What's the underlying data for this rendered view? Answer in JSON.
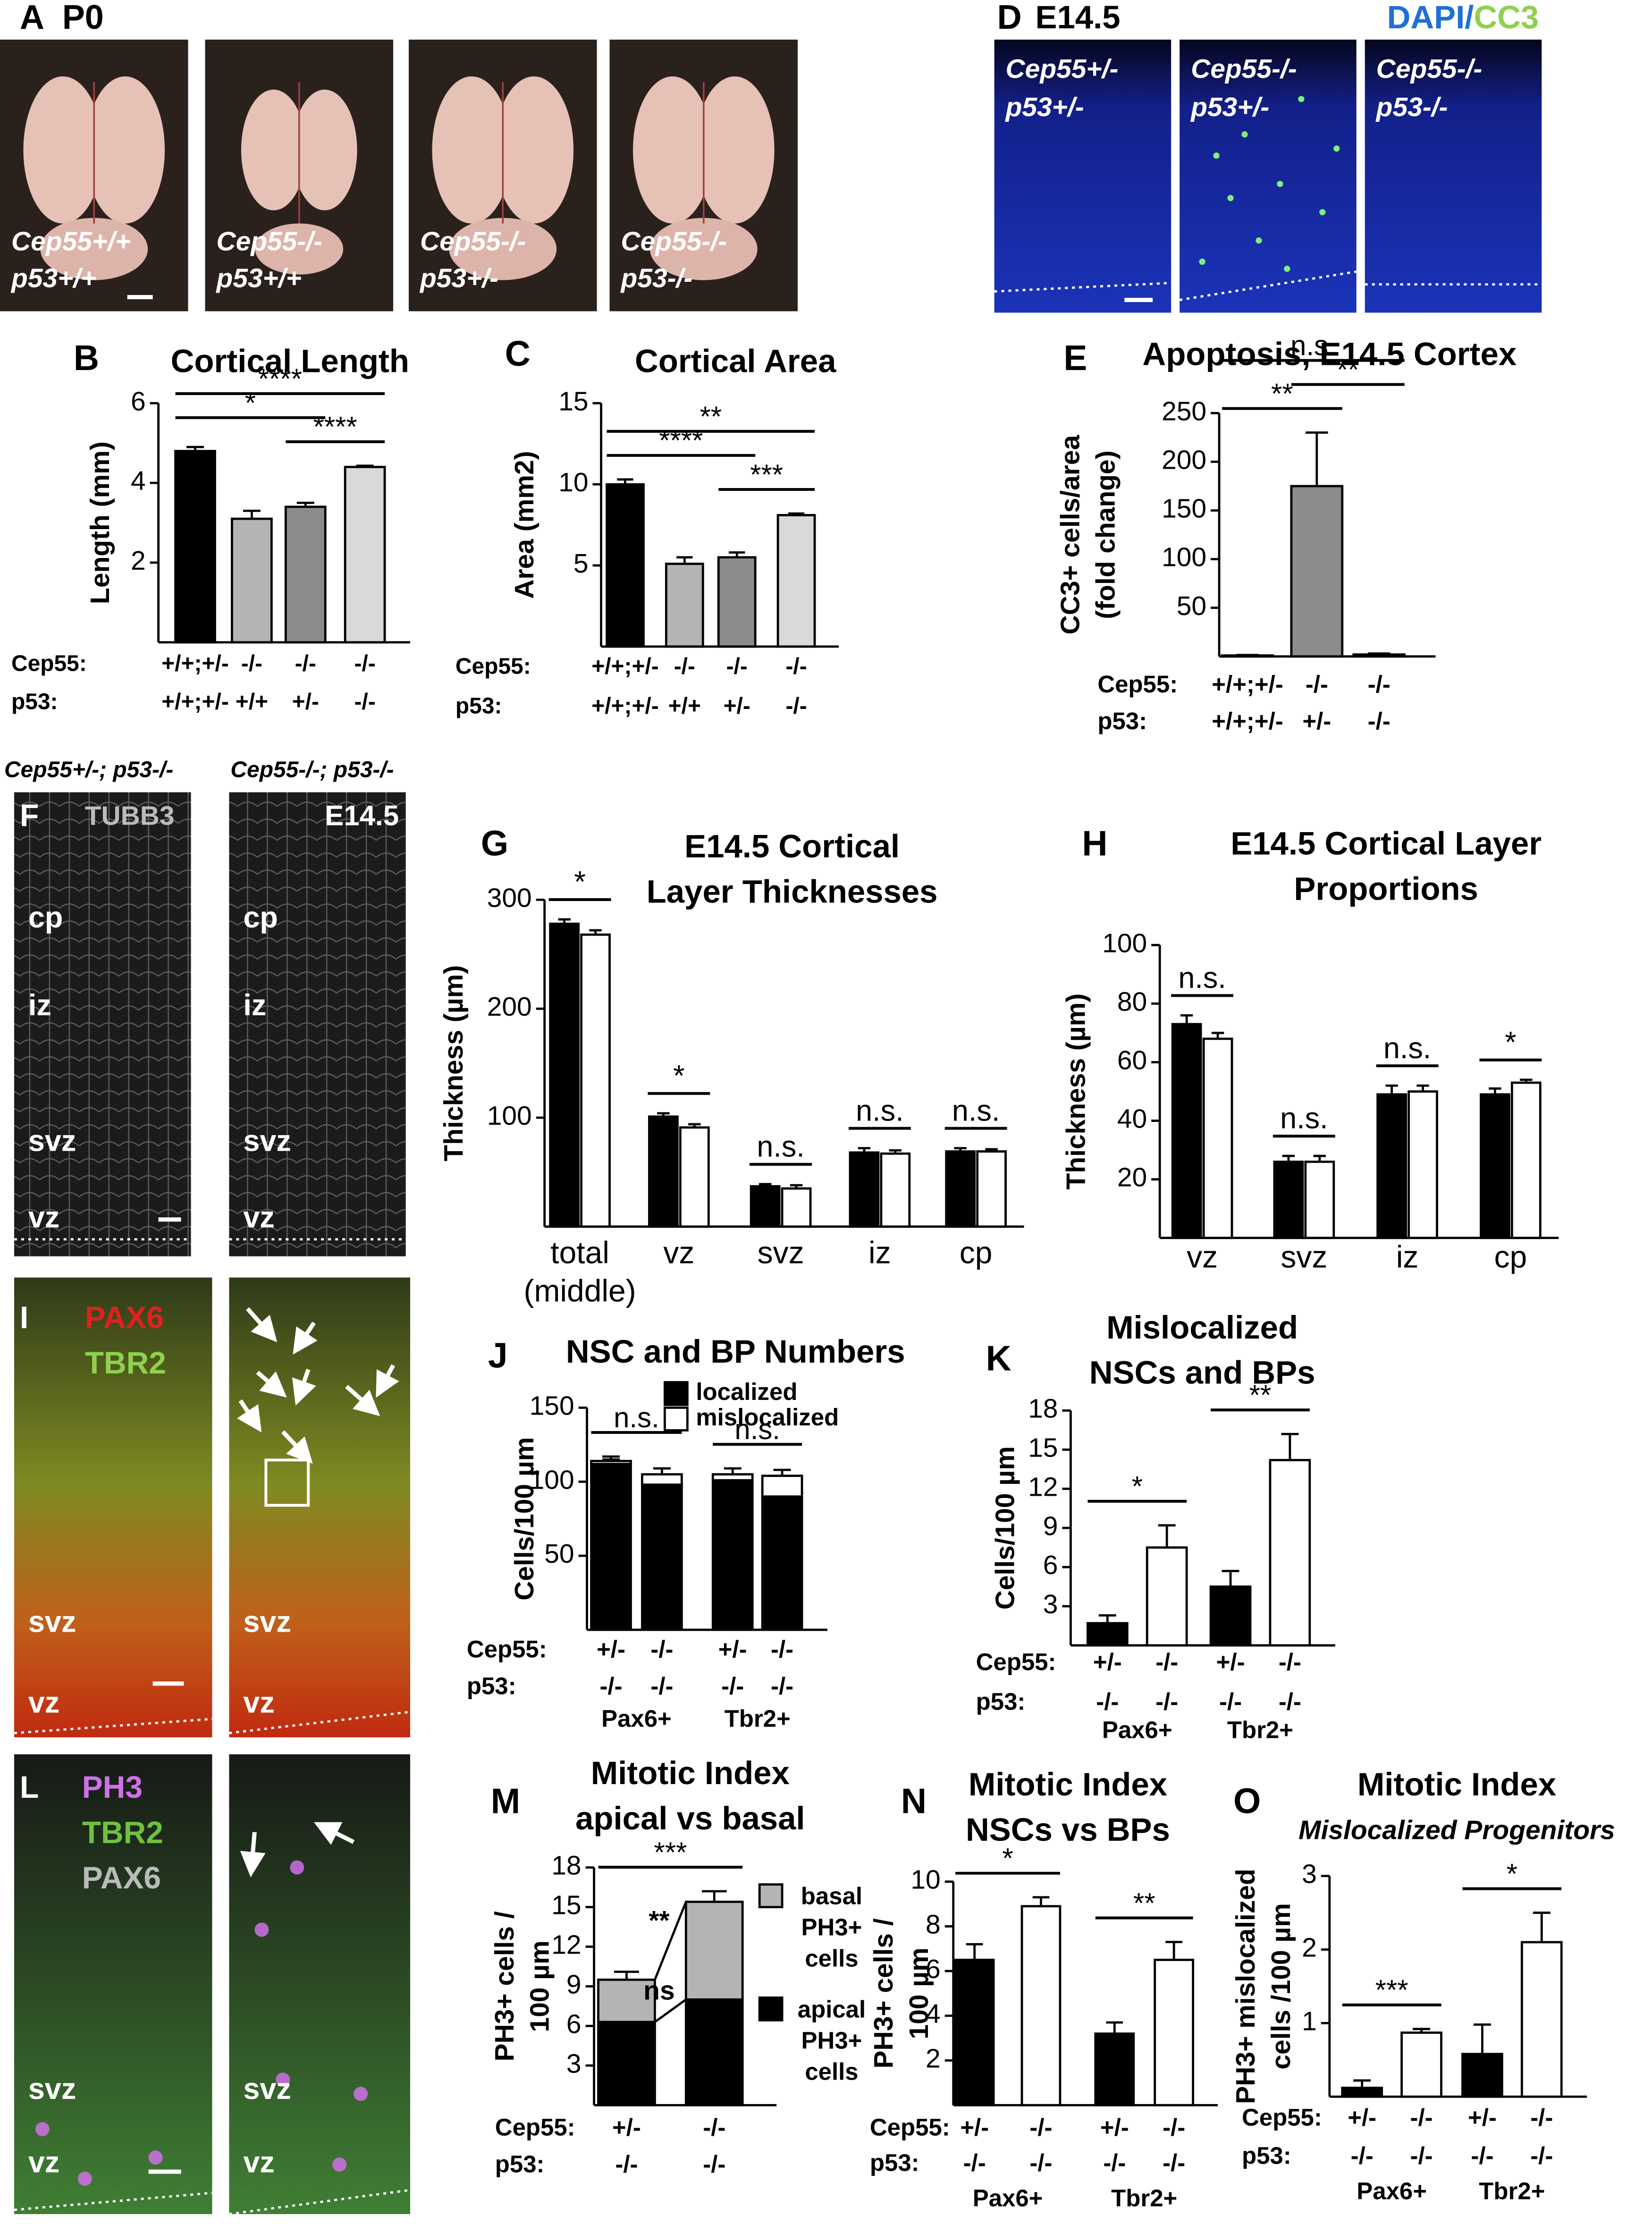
{
  "image_panels": {
    "A": {
      "label": "A",
      "title": "P0",
      "images": [
        [
          "Cep55+/+",
          "p53+/+"
        ],
        [
          "Cep55-/-",
          "p53+/+"
        ],
        [
          "Cep55-/-",
          "p53+/-"
        ],
        [
          "Cep55-/-",
          "p53-/-"
        ]
      ]
    },
    "D": {
      "label": "D",
      "title": "E14.5",
      "stain": [
        {
          "text": "DAPI/",
          "color": "#1f6fd8"
        },
        {
          "text": "CC3",
          "color": "#8fd14f"
        }
      ],
      "images": [
        [
          "Cep55+/-",
          "p53+/-"
        ],
        [
          "Cep55-/-",
          "p53+/-"
        ],
        [
          "Cep55-/-",
          "p53-/-"
        ]
      ]
    },
    "F": {
      "label": "F",
      "genotypes": [
        "Cep55+/-; p53-/-",
        "Cep55-/-; p53-/-"
      ],
      "stain": [
        {
          "text": "TUBB3",
          "color": "#bbbbbb"
        }
      ],
      "stage": "E14.5",
      "layers": [
        [
          "cp",
          "iz",
          "svz",
          "vz"
        ],
        [
          "cp",
          "iz",
          "svz",
          "vz"
        ]
      ]
    },
    "I": {
      "label": "I",
      "stain": [
        {
          "text": "PAX6",
          "color": "#e02020"
        },
        {
          "text": "TBR2",
          "color": "#8fd14f"
        }
      ],
      "layers": [
        [
          "svz",
          "vz"
        ],
        [
          "svz",
          "vz"
        ]
      ]
    },
    "L": {
      "label": "L",
      "stain": [
        {
          "text": "PH3",
          "color": "#d070e8"
        },
        {
          "text": "TBR2",
          "color": "#70c040"
        },
        {
          "text": "PAX6",
          "color": "#bbbbbb"
        }
      ],
      "layers": [
        [
          "svz",
          "vz"
        ],
        [
          "svz",
          "vz"
        ]
      ]
    }
  },
  "chart_data": [
    {
      "panel": "B",
      "type": "bar",
      "title": [
        "Cortical Length"
      ],
      "ylabel": [
        "Length (mm)"
      ],
      "ylim": [
        0,
        6
      ],
      "yticks": [
        2,
        4,
        6
      ],
      "values": [
        4.8,
        3.1,
        3.4,
        4.4
      ],
      "errors": [
        0.1,
        0.2,
        0.1,
        0.03
      ],
      "colors": [
        "#000000",
        "#b4b4b4",
        "#8c8c8c",
        "#d9d9d9"
      ],
      "category_rows": [
        {
          "label": "Cep55:",
          "labels": [
            "+/+;+/-",
            "-/-",
            "-/-",
            "-/-"
          ]
        },
        {
          "label": "p53:",
          "labels": [
            "+/+;+/-",
            "+/+",
            "+/-",
            "-/-"
          ]
        }
      ],
      "significance": [
        {
          "text": "****",
          "from": 0,
          "to": 3
        },
        {
          "text": "*",
          "from": 0,
          "to": 2
        },
        {
          "text": "****",
          "from": 2,
          "to": 3
        }
      ]
    },
    {
      "panel": "C",
      "type": "bar",
      "title": [
        "Cortical Area"
      ],
      "ylabel": [
        "Area (mm2)"
      ],
      "ylim": [
        0,
        15
      ],
      "yticks": [
        5,
        10,
        15
      ],
      "values": [
        10.0,
        5.1,
        5.5,
        8.1
      ],
      "errors": [
        0.3,
        0.4,
        0.3,
        0.1
      ],
      "colors": [
        "#000000",
        "#b4b4b4",
        "#8c8c8c",
        "#d9d9d9"
      ],
      "category_rows": [
        {
          "label": "Cep55:",
          "labels": [
            "+/+;+/-",
            "-/-",
            "-/-",
            "-/-"
          ]
        },
        {
          "label": "p53:",
          "labels": [
            "+/+;+/-",
            "+/+",
            "+/-",
            "-/-"
          ]
        }
      ],
      "significance": [
        {
          "text": "**",
          "from": 0,
          "to": 3
        },
        {
          "text": "****",
          "from": 0,
          "to": 2
        },
        {
          "text": "***",
          "from": 2,
          "to": 3
        }
      ]
    },
    {
      "panel": "E",
      "type": "bar",
      "title": [
        "Apoptosis, E14.5 Cortex"
      ],
      "ylabel": [
        "CC3+ cells/area",
        "(fold change)"
      ],
      "ylim": [
        0,
        250
      ],
      "yticks": [
        50,
        100,
        150,
        200,
        250
      ],
      "values": [
        1,
        175,
        2
      ],
      "errors": [
        0.5,
        55,
        1
      ],
      "colors": [
        "#000000",
        "#8c8c8c",
        "#8c8c8c"
      ],
      "category_rows": [
        {
          "label": "Cep55:",
          "labels": [
            "+/+;+/-",
            "-/-",
            "-/-"
          ]
        },
        {
          "label": "p53:",
          "labels": [
            "+/+;+/-",
            "+/-",
            "-/-"
          ]
        }
      ],
      "significance": [
        {
          "text": "n.s.",
          "from": 0,
          "to": 2
        },
        {
          "text": "**",
          "from": 0,
          "to": 1
        },
        {
          "text": "**",
          "from": 1,
          "to": 2
        }
      ]
    },
    {
      "panel": "G",
      "type": "bar",
      "title": [
        "E14.5 Cortical",
        "Layer Thicknesses"
      ],
      "ylabel": [
        "Thickness (µm)"
      ],
      "ylim": [
        0,
        300
      ],
      "yticks": [
        100,
        200,
        300
      ],
      "categories": [
        "total (middle)",
        "vz",
        "svz",
        "iz",
        "cp"
      ],
      "series": [
        {
          "color": "#000000",
          "values": [
            278,
            101,
            37,
            68,
            69
          ],
          "errors": [
            4,
            3,
            2,
            4,
            3
          ]
        },
        {
          "color": "#ffffff",
          "values": [
            268,
            91,
            35,
            67,
            69
          ],
          "errors": [
            4,
            3,
            3,
            3,
            2
          ]
        }
      ],
      "significance": [
        {
          "text": "*",
          "category": 0
        },
        {
          "text": "*",
          "category": 1
        },
        {
          "text": "n.s.",
          "category": 2
        },
        {
          "text": "n.s.",
          "category": 3
        },
        {
          "text": "n.s.",
          "category": 4
        }
      ]
    },
    {
      "panel": "H",
      "type": "bar",
      "title": [
        "E14.5 Cortical Layer",
        "Proportions"
      ],
      "ylabel": [
        "Thickness (µm)"
      ],
      "ylim": [
        0,
        100
      ],
      "yticks": [
        20,
        40,
        60,
        80,
        100
      ],
      "categories": [
        "vz",
        "svz",
        "iz",
        "cp"
      ],
      "series": [
        {
          "color": "#000000",
          "values": [
            73,
            26,
            49,
            49
          ],
          "errors": [
            3,
            2,
            3,
            2
          ]
        },
        {
          "color": "#ffffff",
          "values": [
            68,
            26,
            50,
            53
          ],
          "errors": [
            2,
            2,
            2,
            1
          ]
        }
      ],
      "significance": [
        {
          "text": "n.s.",
          "category": 0
        },
        {
          "text": "n.s.",
          "category": 1
        },
        {
          "text": "n.s.",
          "category": 2
        },
        {
          "text": "*",
          "category": 3
        }
      ]
    },
    {
      "panel": "J",
      "type": "stacked_bar",
      "title": [
        "NSC and BP Numbers"
      ],
      "ylabel": [
        "Cells/100 µm"
      ],
      "ylim": [
        0,
        150
      ],
      "yticks": [
        50,
        100,
        150
      ],
      "series": [
        {
          "name": "localized",
          "color": "#000000",
          "values": [
            112,
            98,
            101,
            90
          ],
          "errors": [
            3,
            4,
            3,
            6
          ]
        },
        {
          "name": "mislocalized",
          "color": "#ffffff",
          "values": [
            2,
            7,
            4,
            14
          ],
          "errors": [
            3,
            4,
            4,
            4
          ]
        }
      ],
      "category_rows": [
        {
          "label": "Cep55:",
          "labels": [
            "+/-",
            "-/-",
            "+/-",
            "-/-"
          ]
        },
        {
          "label": "p53:",
          "labels": [
            "-/-",
            "-/-",
            "-/-",
            "-/-"
          ]
        }
      ],
      "groups": [
        {
          "label": "Pax6+",
          "from": 0,
          "to": 1
        },
        {
          "label": "Tbr2+",
          "from": 2,
          "to": 3
        }
      ],
      "significance": [
        {
          "text": "n.s.",
          "from": 0,
          "to": 1
        },
        {
          "text": "n.s.",
          "from": 2,
          "to": 3
        }
      ]
    },
    {
      "panel": "K",
      "type": "bar",
      "title": [
        "Mislocalized",
        "NSCs and BPs"
      ],
      "ylabel": [
        "Cells/100 µm"
      ],
      "ylim": [
        0,
        18
      ],
      "yticks": [
        3,
        6,
        9,
        12,
        15,
        18
      ],
      "values": [
        1.7,
        7.5,
        4.5,
        14.2
      ],
      "errors": [
        0.6,
        1.7,
        1.2,
        2.0
      ],
      "colors": [
        "#000000",
        "#ffffff",
        "#000000",
        "#ffffff"
      ],
      "category_rows": [
        {
          "label": "Cep55:",
          "labels": [
            "+/-",
            "-/-",
            "+/-",
            "-/-"
          ]
        },
        {
          "label": "p53:",
          "labels": [
            "-/-",
            "-/-",
            "-/-",
            "-/-"
          ]
        }
      ],
      "groups": [
        {
          "label": "Pax6+",
          "from": 0,
          "to": 1
        },
        {
          "label": "Tbr2+",
          "from": 2,
          "to": 3
        }
      ],
      "significance": [
        {
          "text": "*",
          "from": 0,
          "to": 1
        },
        {
          "text": "**",
          "from": 2,
          "to": 3
        }
      ]
    },
    {
      "panel": "M",
      "type": "stacked_bar",
      "title": [
        "Mitotic Index",
        "apical vs basal"
      ],
      "ylabel": [
        "PH3+ cells /",
        "100 µm"
      ],
      "ylim": [
        0,
        18
      ],
      "yticks": [
        3,
        6,
        9,
        12,
        15,
        18
      ],
      "series": [
        {
          "name": "apical PH3+ cells",
          "color": "#000000",
          "values": [
            6.3,
            8.0
          ],
          "errors": [
            0.5,
            0.4
          ]
        },
        {
          "name": "basal PH3+ cells",
          "color": "#b4b4b4",
          "values": [
            3.2,
            7.4
          ],
          "errors": [
            0.6,
            0.8
          ]
        }
      ],
      "category_rows": [
        {
          "label": "Cep55:",
          "labels": [
            "+/-",
            "-/-"
          ]
        },
        {
          "label": "p53:",
          "labels": [
            "-/-",
            "-/-"
          ]
        }
      ],
      "significance": [
        {
          "text": "***",
          "from": 0,
          "to": 1
        },
        {
          "text": "**",
          "series": 1
        },
        {
          "text": "ns",
          "series": 0
        }
      ]
    },
    {
      "panel": "N",
      "type": "bar",
      "title": [
        "Mitotic Index",
        "NSCs vs BPs"
      ],
      "ylabel": [
        "PH3+ cells /",
        "100 µm"
      ],
      "ylim": [
        0,
        10
      ],
      "yticks": [
        2,
        4,
        6,
        8,
        10
      ],
      "values": [
        6.5,
        8.9,
        3.2,
        6.5
      ],
      "errors": [
        0.7,
        0.4,
        0.5,
        0.8
      ],
      "colors": [
        "#000000",
        "#ffffff",
        "#000000",
        "#ffffff"
      ],
      "category_rows": [
        {
          "label": "Cep55:",
          "labels": [
            "+/-",
            "-/-",
            "+/-",
            "-/-"
          ]
        },
        {
          "label": "p53:",
          "labels": [
            "-/-",
            "-/-",
            "-/-",
            "-/-"
          ]
        }
      ],
      "groups": [
        {
          "label": "Pax6+",
          "from": 0,
          "to": 1
        },
        {
          "label": "Tbr2+",
          "from": 2,
          "to": 3
        }
      ],
      "significance": [
        {
          "text": "*",
          "from": 0,
          "to": 1
        },
        {
          "text": "**",
          "from": 2,
          "to": 3
        }
      ]
    },
    {
      "panel": "O",
      "type": "bar",
      "title": [
        "Mitotic Index"
      ],
      "subtitle": "Mislocalized Progenitors",
      "ylabel": [
        "PH3+ mislocalized",
        "cells /100 µm"
      ],
      "ylim": [
        0,
        3
      ],
      "yticks": [
        1,
        2,
        3
      ],
      "values": [
        0.12,
        0.87,
        0.58,
        2.1
      ],
      "errors": [
        0.1,
        0.05,
        0.4,
        0.4
      ],
      "colors": [
        "#000000",
        "#ffffff",
        "#000000",
        "#ffffff"
      ],
      "category_rows": [
        {
          "label": "Cep55:",
          "labels": [
            "+/-",
            "-/-",
            "+/-",
            "-/-"
          ]
        },
        {
          "label": "p53:",
          "labels": [
            "-/-",
            "-/-",
            "-/-",
            "-/-"
          ]
        }
      ],
      "groups": [
        {
          "label": "Pax6+",
          "from": 0,
          "to": 1
        },
        {
          "label": "Tbr2+",
          "from": 2,
          "to": 3
        }
      ],
      "significance": [
        {
          "text": "***",
          "from": 0,
          "to": 1
        },
        {
          "text": "*",
          "from": 2,
          "to": 3
        }
      ]
    }
  ]
}
